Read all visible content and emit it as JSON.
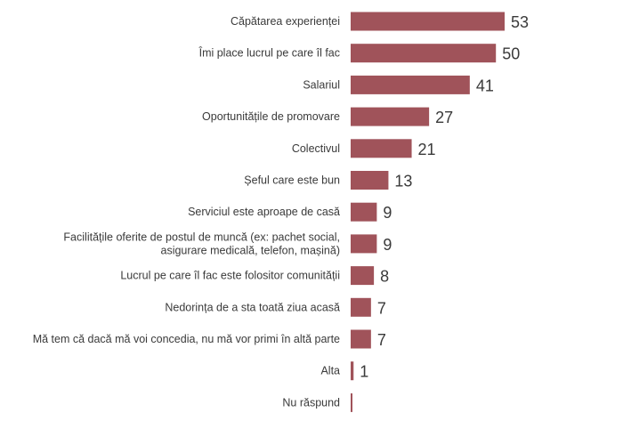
{
  "chart_data": {
    "type": "bar",
    "orientation": "horizontal",
    "categories": [
      [
        "Căpătarea experienței"
      ],
      [
        "Îmi place lucrul pe care îl fac"
      ],
      [
        "Salariul"
      ],
      [
        "Oportunitățile de promovare"
      ],
      [
        "Colectivul"
      ],
      [
        "Șeful care este bun"
      ],
      [
        "Serviciul este aproape de casă"
      ],
      [
        "Facilitățile oferite de postul de muncă (ex: pachet social,",
        "asigurare medicală, telefon, mașină)"
      ],
      [
        "Lucrul pe care îl fac este folositor comunității"
      ],
      [
        "Nedorința de a sta toată ziua acasă"
      ],
      [
        "Mă tem că dacă mă voi concedia, nu mă vor primi în altă parte"
      ],
      [
        "Alta"
      ],
      [
        "Nu răspund"
      ]
    ],
    "values": [
      53,
      50,
      41,
      27,
      21,
      13,
      9,
      9,
      8,
      7,
      7,
      1,
      null
    ],
    "value_labels": [
      "53",
      "50",
      "41",
      "27",
      "21",
      "13",
      "9",
      "9",
      "8",
      "7",
      "7",
      "1",
      ""
    ],
    "xlim": [
      0,
      53
    ],
    "bar_color": "#a0535a",
    "grid": false,
    "legend": "none",
    "title": "",
    "xlabel": "",
    "ylabel": ""
  }
}
